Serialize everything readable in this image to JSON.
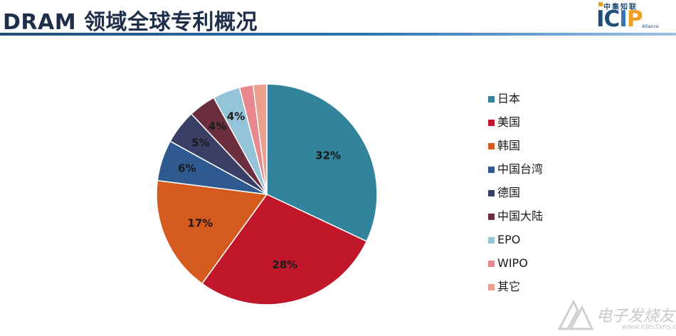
{
  "header": {
    "title": "DRAM 领域全球专利概况",
    "logo": {
      "top_text": "中集知联",
      "main_a": "IC",
      "main_b": "I",
      "main_c": "P",
      "sub_text": "Alliance"
    }
  },
  "chart_data": {
    "type": "pie",
    "title": "",
    "legend_position": "right",
    "slices": [
      {
        "name": "日本",
        "value": 32,
        "label": "32%",
        "color": "#31849b"
      },
      {
        "name": "美国",
        "value": 28,
        "label": "28%",
        "color": "#c0182a"
      },
      {
        "name": "韩国",
        "value": 17,
        "label": "17%",
        "color": "#d45a1e"
      },
      {
        "name": "中国台湾",
        "value": 6,
        "label": "6%",
        "color": "#2f5a8f"
      },
      {
        "name": "德国",
        "value": 5,
        "label": "5%",
        "color": "#3a3f66"
      },
      {
        "name": "中国大陆",
        "value": 4,
        "label": "4%",
        "color": "#6b2e3e"
      },
      {
        "name": "EPO",
        "value": 4,
        "label": "4%",
        "color": "#93c4d8"
      },
      {
        "name": "WIPO",
        "value": 2,
        "label": "",
        "color": "#e8878e"
      },
      {
        "name": "其它",
        "value": 2,
        "label": "",
        "color": "#eba08e"
      }
    ]
  },
  "watermark": {
    "text": "电子发烧友",
    "url": "www.elecfans.com"
  }
}
